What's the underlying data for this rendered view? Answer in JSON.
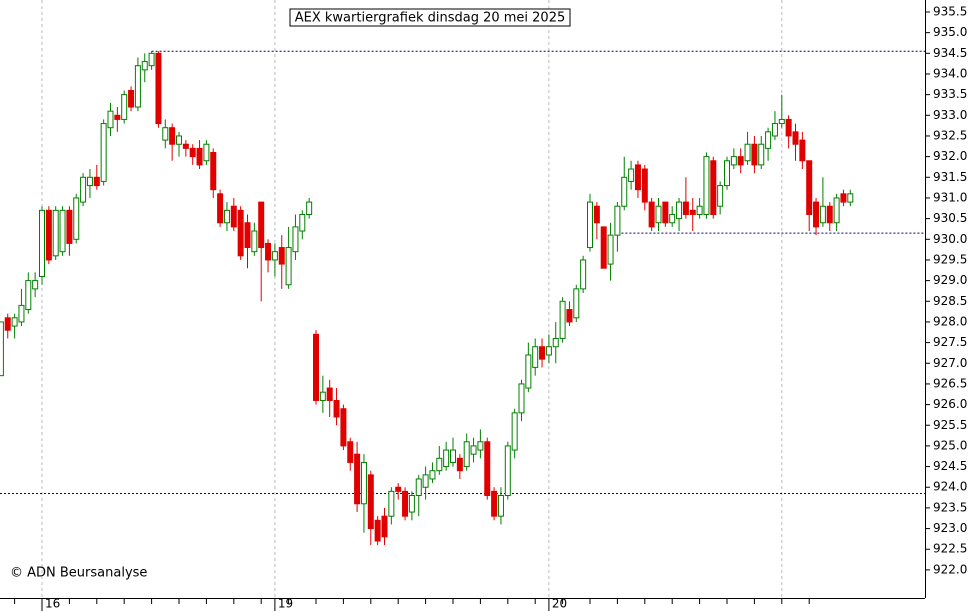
{
  "chart_data": {
    "type": "candlestick",
    "title": "AEX kwartiergrafiek dinsdag 20 mei 2025",
    "credit": "© ADN Beursanalyse",
    "up_color": "#008000",
    "down_color": "#e00000",
    "level_color": "#000080",
    "categories": [
      null,
      null,
      null,
      null,
      null,
      null,
      "16",
      null,
      null,
      null,
      null,
      null,
      null,
      null,
      null,
      null,
      null,
      null,
      null,
      null,
      null,
      null,
      null,
      null,
      null,
      null,
      null,
      null,
      null,
      null,
      null,
      null,
      null,
      null,
      null,
      null,
      null,
      null,
      null,
      null,
      "19",
      null,
      null,
      null,
      null,
      null,
      null,
      null,
      null,
      null,
      null,
      null,
      null,
      null,
      null,
      null,
      null,
      null,
      null,
      null,
      null,
      null,
      null,
      null,
      null,
      null,
      null,
      null,
      null,
      null,
      null,
      null,
      null,
      null,
      null,
      null,
      null,
      null,
      null,
      null,
      "20",
      null,
      null,
      null,
      null,
      null,
      null,
      null,
      null,
      null,
      null,
      null,
      null,
      null,
      null,
      null,
      null,
      null,
      null,
      null,
      null,
      null,
      null,
      null,
      null,
      null,
      null,
      null,
      null,
      null,
      null,
      null,
      null,
      null,
      null,
      null,
      null,
      null,
      null
    ],
    "ohlc": [
      [
        926.7,
        928.0,
        926.7,
        928.0
      ],
      [
        928.1,
        928.2,
        927.6,
        927.8
      ],
      [
        927.9,
        928.2,
        927.6,
        928.1
      ],
      [
        928.0,
        928.8,
        927.9,
        928.4
      ],
      [
        928.3,
        929.2,
        928.2,
        929.0
      ],
      [
        928.8,
        929.2,
        928.6,
        929.0
      ],
      [
        929.1,
        930.8,
        928.9,
        930.7
      ],
      [
        930.7,
        930.8,
        929.4,
        929.5
      ],
      [
        929.6,
        930.8,
        929.5,
        930.7
      ],
      [
        929.7,
        930.8,
        929.6,
        930.7
      ],
      [
        930.7,
        930.8,
        929.6,
        929.9
      ],
      [
        930.0,
        931.1,
        929.9,
        931.0
      ],
      [
        930.9,
        931.6,
        930.8,
        931.5
      ],
      [
        931.3,
        931.7,
        931.0,
        931.5
      ],
      [
        931.5,
        931.8,
        931.2,
        931.3
      ],
      [
        931.4,
        932.9,
        931.3,
        932.8
      ],
      [
        932.7,
        933.3,
        932.5,
        933.1
      ],
      [
        933.0,
        933.2,
        932.6,
        932.9
      ],
      [
        932.9,
        933.6,
        932.8,
        933.5
      ],
      [
        933.6,
        933.7,
        933.1,
        933.2
      ],
      [
        933.2,
        934.4,
        933.1,
        934.2
      ],
      [
        934.1,
        934.5,
        933.8,
        934.3
      ],
      [
        934.2,
        934.55,
        934.1,
        934.5
      ],
      [
        934.5,
        934.55,
        932.7,
        932.8
      ],
      [
        932.4,
        932.9,
        932.2,
        932.7
      ],
      [
        932.7,
        932.8,
        931.9,
        932.3
      ],
      [
        932.3,
        932.6,
        932.0,
        932.5
      ],
      [
        932.3,
        932.4,
        932.0,
        932.2
      ],
      [
        932.2,
        932.3,
        931.8,
        932.0
      ],
      [
        932.2,
        932.4,
        931.7,
        931.8
      ],
      [
        931.9,
        932.4,
        931.8,
        932.3
      ],
      [
        932.1,
        932.2,
        931.0,
        931.2
      ],
      [
        931.1,
        931.2,
        930.3,
        930.4
      ],
      [
        930.4,
        930.9,
        930.2,
        930.7
      ],
      [
        930.8,
        931.0,
        930.2,
        930.3
      ],
      [
        930.7,
        930.8,
        929.5,
        929.6
      ],
      [
        930.4,
        930.6,
        929.3,
        929.8
      ],
      [
        929.7,
        930.4,
        929.6,
        930.2
      ],
      [
        930.9,
        930.9,
        928.5,
        929.8
      ],
      [
        929.9,
        930.0,
        929.2,
        929.5
      ],
      [
        929.5,
        929.9,
        929.1,
        929.7
      ],
      [
        929.8,
        930.1,
        928.8,
        929.4
      ],
      [
        928.9,
        930.3,
        928.8,
        929.8
      ],
      [
        929.7,
        930.6,
        929.5,
        930.3
      ],
      [
        930.2,
        930.7,
        930.0,
        930.6
      ],
      [
        930.6,
        931.0,
        930.5,
        930.9
      ],
      [
        927.7,
        927.8,
        926.0,
        926.1
      ],
      [
        926.1,
        926.7,
        925.8,
        926.3
      ],
      [
        926.4,
        926.6,
        925.7,
        926.1
      ],
      [
        926.1,
        926.4,
        925.5,
        925.7
      ],
      [
        925.9,
        926.0,
        924.9,
        925.0
      ],
      [
        925.1,
        925.2,
        924.4,
        924.6
      ],
      [
        924.8,
        925.1,
        923.4,
        923.6
      ],
      [
        923.6,
        924.8,
        922.9,
        924.6
      ],
      [
        924.3,
        924.4,
        922.6,
        923.0
      ],
      [
        923.2,
        923.3,
        922.6,
        922.7
      ],
      [
        923.3,
        923.5,
        922.6,
        922.8
      ],
      [
        923.3,
        924.0,
        923.1,
        923.9
      ],
      [
        924.0,
        924.1,
        923.7,
        923.9
      ],
      [
        923.9,
        924.0,
        923.2,
        923.3
      ],
      [
        923.4,
        923.9,
        923.2,
        923.8
      ],
      [
        923.8,
        924.3,
        923.3,
        924.2
      ],
      [
        924.0,
        924.5,
        923.7,
        924.3
      ],
      [
        924.2,
        924.6,
        924.1,
        924.4
      ],
      [
        924.4,
        925.0,
        924.3,
        924.7
      ],
      [
        924.5,
        925.1,
        924.4,
        924.9
      ],
      [
        924.6,
        925.2,
        924.5,
        924.9
      ],
      [
        924.7,
        924.8,
        924.2,
        924.4
      ],
      [
        924.5,
        925.3,
        924.4,
        925.1
      ],
      [
        924.8,
        925.2,
        924.6,
        925.0
      ],
      [
        924.9,
        925.4,
        924.7,
        925.1
      ],
      [
        925.1,
        925.2,
        923.7,
        923.8
      ],
      [
        923.9,
        924.0,
        923.2,
        923.3
      ],
      [
        923.3,
        924.0,
        923.1,
        923.8
      ],
      [
        923.8,
        925.1,
        923.7,
        925.0
      ],
      [
        924.9,
        925.9,
        924.7,
        925.8
      ],
      [
        925.8,
        926.6,
        925.6,
        926.5
      ],
      [
        926.4,
        927.5,
        926.3,
        927.2
      ],
      [
        926.9,
        927.6,
        926.7,
        927.4
      ],
      [
        927.4,
        927.6,
        926.9,
        927.1
      ],
      [
        927.2,
        927.7,
        927.0,
        927.4
      ],
      [
        927.4,
        928.0,
        927.0,
        927.6
      ],
      [
        927.6,
        928.6,
        927.5,
        928.5
      ],
      [
        928.3,
        928.5,
        927.9,
        928.0
      ],
      [
        928.1,
        928.9,
        928.0,
        928.8
      ],
      [
        928.8,
        929.6,
        928.7,
        929.5
      ],
      [
        929.8,
        931.1,
        929.7,
        930.9
      ],
      [
        930.8,
        930.9,
        930.0,
        930.4
      ],
      [
        930.3,
        930.3,
        929.3,
        929.3
      ],
      [
        929.4,
        930.4,
        929.0,
        930.1
      ],
      [
        930.1,
        930.9,
        929.7,
        930.8
      ],
      [
        930.8,
        932.0,
        930.7,
        931.5
      ],
      [
        931.4,
        931.9,
        931.2,
        931.7
      ],
      [
        931.8,
        931.9,
        931.0,
        931.2
      ],
      [
        931.7,
        931.8,
        930.7,
        930.9
      ],
      [
        930.9,
        931.0,
        930.2,
        930.3
      ],
      [
        930.4,
        931.0,
        930.2,
        930.8
      ],
      [
        930.9,
        930.9,
        930.3,
        930.4
      ],
      [
        930.4,
        930.8,
        930.3,
        930.6
      ],
      [
        930.5,
        931.0,
        930.2,
        930.9
      ],
      [
        930.9,
        931.5,
        930.5,
        930.6
      ],
      [
        930.7,
        931.0,
        930.2,
        930.6
      ],
      [
        930.6,
        931.0,
        930.5,
        930.8
      ],
      [
        930.6,
        932.1,
        930.5,
        932.0
      ],
      [
        931.9,
        932.0,
        930.5,
        930.6
      ],
      [
        930.8,
        931.4,
        930.6,
        931.3
      ],
      [
        931.3,
        932.0,
        931.2,
        931.9
      ],
      [
        931.8,
        932.2,
        931.7,
        932.0
      ],
      [
        932.0,
        932.2,
        931.6,
        931.8
      ],
      [
        931.9,
        932.6,
        931.8,
        932.3
      ],
      [
        932.3,
        932.5,
        931.6,
        931.8
      ],
      [
        931.8,
        932.5,
        931.7,
        932.3
      ],
      [
        932.2,
        932.7,
        931.9,
        932.6
      ],
      [
        932.5,
        933.1,
        932.4,
        932.8
      ],
      [
        932.8,
        933.5,
        932.7,
        932.9
      ],
      [
        932.9,
        933.0,
        932.2,
        932.5
      ],
      [
        932.6,
        932.8,
        931.9,
        932.3
      ],
      [
        932.4,
        932.6,
        931.7,
        931.9
      ],
      [
        931.9,
        931.9,
        930.2,
        930.6
      ],
      [
        930.9,
        931.0,
        930.1,
        930.3
      ],
      [
        930.4,
        931.5,
        930.3,
        930.8
      ],
      [
        930.8,
        930.9,
        930.2,
        930.4
      ],
      [
        930.4,
        931.1,
        930.2,
        931.0
      ],
      [
        931.1,
        931.2,
        930.8,
        930.9
      ],
      [
        930.9,
        931.2,
        930.8,
        931.1
      ]
    ],
    "levels": [
      {
        "value": 934.55,
        "from": 22
      },
      {
        "value": 930.15,
        "from": 90
      },
      {
        "value": 923.85,
        "from": 0
      }
    ],
    "ylim": [
      921.32,
      935.79
    ],
    "yticks": [
      {
        "value": 922.0,
        "label": "922.0"
      },
      {
        "value": 922.5,
        "label": "922.5"
      },
      {
        "value": 923.0,
        "label": "923.0"
      },
      {
        "value": 923.5,
        "label": "923.5"
      },
      {
        "value": 924.0,
        "label": "924.0"
      },
      {
        "value": 924.5,
        "label": "924.5"
      },
      {
        "value": 925.0,
        "label": "925.0"
      },
      {
        "value": 925.5,
        "label": "925.5"
      },
      {
        "value": 926.0,
        "label": "926.0"
      },
      {
        "value": 926.5,
        "label": "926.5"
      },
      {
        "value": 927.0,
        "label": "927.0"
      },
      {
        "value": 927.5,
        "label": "927.5"
      },
      {
        "value": 928.0,
        "label": "928.0"
      },
      {
        "value": 928.5,
        "label": "928.5"
      },
      {
        "value": 929.0,
        "label": "929.0"
      },
      {
        "value": 929.5,
        "label": "929.5"
      },
      {
        "value": 930.0,
        "label": "930.0"
      },
      {
        "value": 930.5,
        "label": "930.5"
      },
      {
        "value": 931.0,
        "label": "931.0"
      },
      {
        "value": 931.5,
        "label": "931.5"
      },
      {
        "value": 932.0,
        "label": "932.0"
      },
      {
        "value": 932.5,
        "label": "932.5"
      },
      {
        "value": 933.0,
        "label": "933.0"
      },
      {
        "value": 933.5,
        "label": "933.5"
      },
      {
        "value": 934.0,
        "label": "934.0"
      },
      {
        "value": 934.5,
        "label": "934.5"
      },
      {
        "value": 935.0,
        "label": "935.0"
      },
      {
        "value": 935.5,
        "label": "935.5"
      }
    ],
    "grid": true
  }
}
